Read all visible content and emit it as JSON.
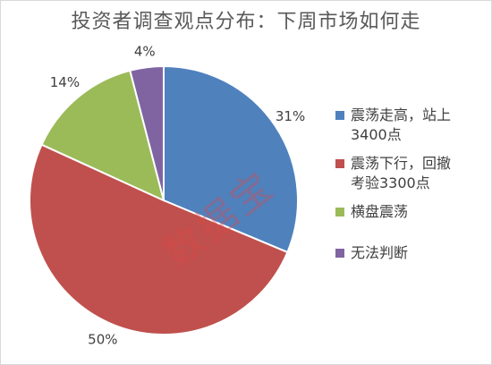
{
  "chart_data": {
    "type": "pie",
    "title": "投资者调查观点分布：下周市场如何走",
    "categories": [
      "震荡走高，站上3400点",
      "震荡下行，回撤考验3300点",
      "横盘震荡",
      "无法判断"
    ],
    "values": [
      31,
      50,
      14,
      4
    ],
    "data_labels": [
      "31%",
      "50%",
      "14%",
      "4%"
    ],
    "colors": [
      "#4f81bd",
      "#c0504d",
      "#9bbb59",
      "#8064a2"
    ],
    "legend_position": "right",
    "legend_lines": [
      [
        "震荡走高，站上",
        "3400点"
      ],
      [
        "震荡下行，回撤",
        "考验3300点"
      ],
      [
        "横盘震荡"
      ],
      [
        "无法判断"
      ]
    ]
  },
  "watermark": "数据宝"
}
